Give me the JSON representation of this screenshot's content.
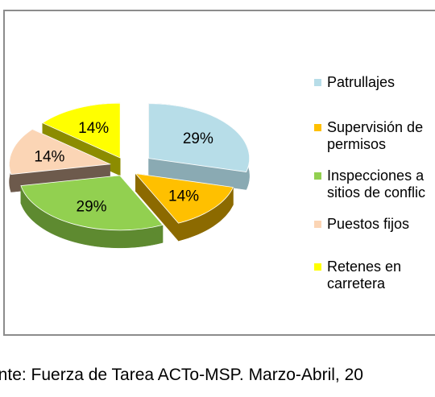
{
  "chart_data": {
    "type": "pie",
    "title": "",
    "slices": [
      {
        "name": "Patrullajes",
        "value": 29,
        "label": "29%",
        "color": "#b7dde8",
        "side": "#8aaab3"
      },
      {
        "name": "Supervisión de permisos",
        "value": 14,
        "label": "14%",
        "color": "#ffc000",
        "side": "#8c6a00"
      },
      {
        "name": "Inspecciones a sitios de conflicto",
        "value": 29,
        "label": "29%",
        "color": "#92d050",
        "side": "#5e8a30"
      },
      {
        "name": "Puestos fijos",
        "value": 14,
        "label": "14%",
        "color": "#fbd5b5",
        "side": "#6d5a4c"
      },
      {
        "name": "Retenes en carretera",
        "value": 14,
        "label": "14%",
        "color": "#ffff00",
        "side": "#8c8c00"
      }
    ],
    "legend": {
      "placement": "right",
      "items": [
        {
          "lines": [
            "Patrullajes"
          ],
          "color": "#b7dde8"
        },
        {
          "lines": [
            "Supervisión de",
            "permisos"
          ],
          "color": "#ffc000"
        },
        {
          "lines": [
            "Inspecciones a",
            "sitios de conflic"
          ],
          "color": "#92d050"
        },
        {
          "lines": [
            "Puestos fijos"
          ],
          "color": "#fbd5b5"
        },
        {
          "lines": [
            "Retenes en",
            "carretera"
          ],
          "color": "#ffff00"
        }
      ]
    }
  },
  "source": "ente: Fuerza de Tarea ACTo-MSP. Marzo-Abril, 20"
}
